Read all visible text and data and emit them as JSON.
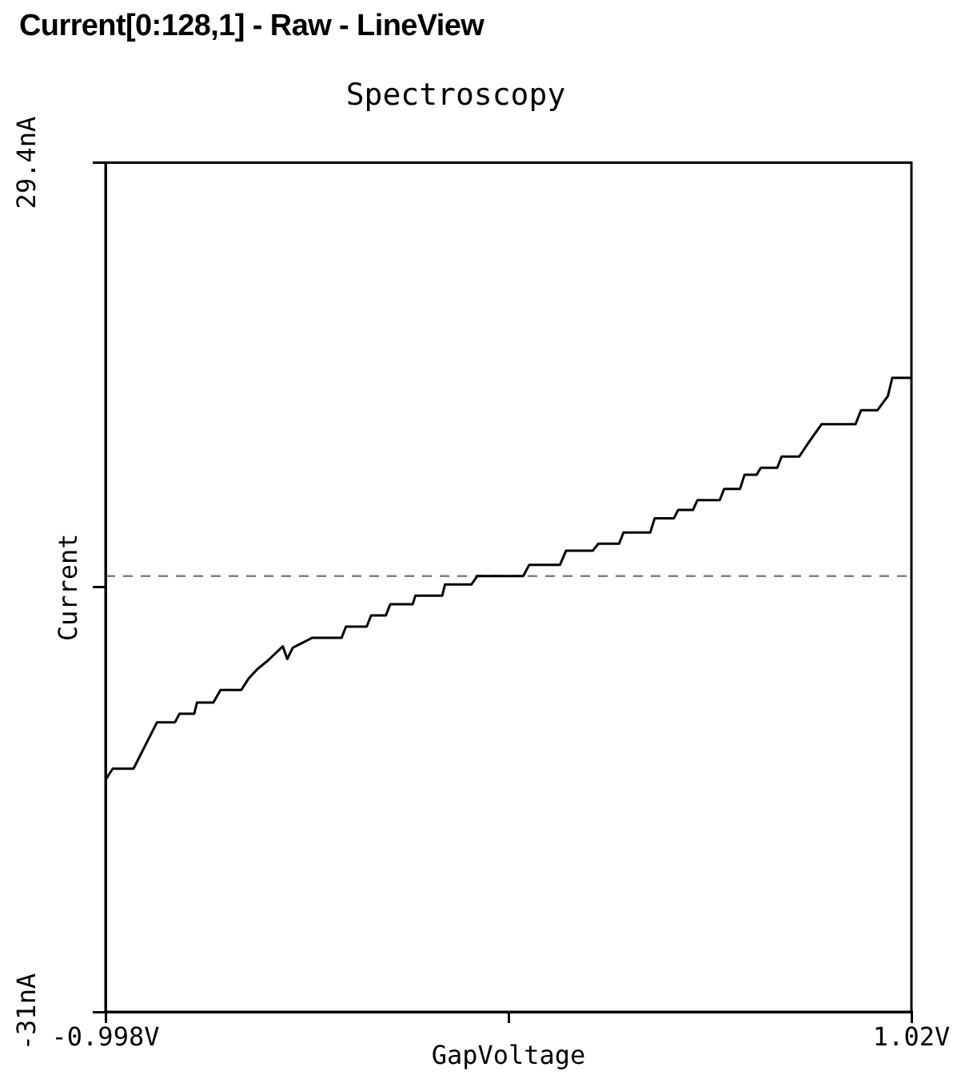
{
  "chart_data": {
    "type": "line",
    "title": "Current[0:128,1] - Raw - LineView",
    "subtitle": "Spectroscopy",
    "xlabel": "GapVoltage",
    "ylabel": "Current",
    "xlim": [
      -0.998,
      1.02
    ],
    "xticks": [
      {
        "value": -0.998,
        "label": "-0.998V"
      },
      {
        "value": 0.011,
        "label": null
      },
      {
        "value": 1.02,
        "label": "1.02V"
      }
    ],
    "ylim": [
      -31,
      29.4
    ],
    "yticks": [
      {
        "value": -31,
        "label": "-31nA"
      },
      {
        "value": -0.8,
        "label": null
      },
      {
        "value": 29.4,
        "label": "29.4nA"
      }
    ],
    "marker": "none",
    "line_style": "solid",
    "color": "#000000",
    "x": [
      -0.998,
      -0.98,
      -0.928,
      -0.869,
      -0.824,
      -0.813,
      -0.776,
      -0.769,
      -0.728,
      -0.71,
      -0.658,
      -0.64,
      -0.617,
      -0.591,
      -0.554,
      -0.543,
      -0.529,
      -0.481,
      -0.407,
      -0.396,
      -0.344,
      -0.333,
      -0.296,
      -0.285,
      -0.229,
      -0.222,
      -0.155,
      -0.148,
      -0.082,
      -0.067,
      0.048,
      0.063,
      0.14,
      0.155,
      0.222,
      0.236,
      0.288,
      0.299,
      0.366,
      0.377,
      0.425,
      0.436,
      0.473,
      0.484,
      0.54,
      0.551,
      0.591,
      0.602,
      0.632,
      0.643,
      0.684,
      0.695,
      0.739,
      0.765,
      0.795,
      0.88,
      0.894,
      0.935,
      0.961,
      0.972,
      1.009,
      1.02
    ],
    "values": [
      -14.5,
      -13.7,
      -13.7,
      -10.4,
      -10.4,
      -9.8,
      -9.8,
      -9.0,
      -9.0,
      -8.1,
      -8.1,
      -7.3,
      -6.6,
      -6.0,
      -5.0,
      -5.9,
      -5.1,
      -4.4,
      -4.4,
      -3.6,
      -3.6,
      -2.8,
      -2.8,
      -2.0,
      -2.0,
      -1.4,
      -1.4,
      -0.6,
      -0.6,
      0,
      0,
      0.8,
      0.8,
      1.8,
      1.8,
      2.3,
      2.3,
      3.1,
      3.1,
      4.1,
      4.1,
      4.7,
      4.7,
      5.4,
      5.4,
      6.2,
      6.2,
      7.2,
      7.2,
      7.7,
      7.7,
      8.5,
      8.5,
      9.6,
      10.8,
      10.8,
      11.8,
      11.8,
      12.8,
      14.1,
      14.1,
      14.1
    ],
    "ref_lines": [
      {
        "axis": "y",
        "value": 0,
        "color": "#808080",
        "line_style": "dashed"
      }
    ]
  }
}
